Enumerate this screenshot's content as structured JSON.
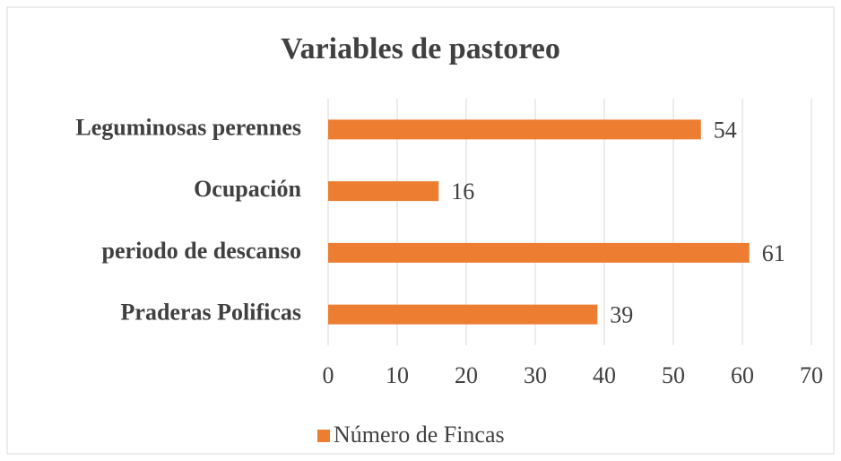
{
  "chart_data": {
    "type": "barh",
    "title": "Variables de pastoreo",
    "categories": [
      "Leguminosas perennes",
      "Ocupación",
      "periodo de descanso",
      "Praderas Polificas"
    ],
    "series": [
      {
        "name": "Número de Fincas",
        "color": "#ed7d31",
        "values": [
          54,
          16,
          61,
          39
        ]
      }
    ],
    "xlim": [
      0,
      70
    ],
    "xticks": [
      0,
      10,
      20,
      30,
      40,
      50,
      60,
      70
    ],
    "grid": true,
    "legend": "bottom"
  }
}
